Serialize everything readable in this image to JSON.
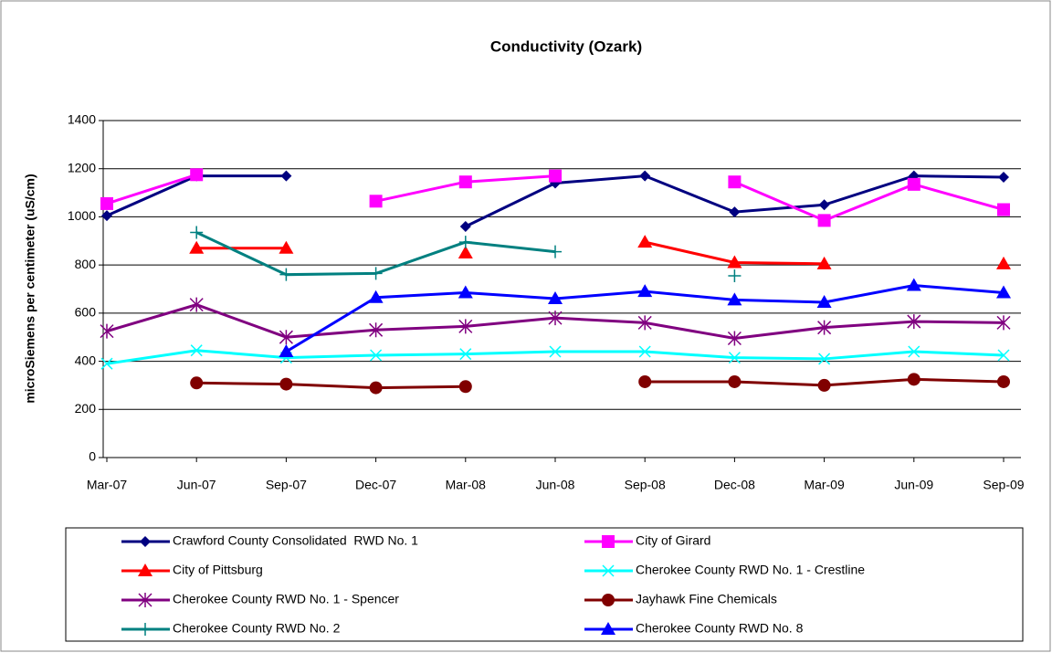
{
  "chart_data": {
    "type": "line",
    "title": "Conductivity (Ozark)",
    "y_label": "microSiemens per centimeter (uS/cm)",
    "categories": [
      "Mar-07",
      "Jun-07",
      "Sep-07",
      "Dec-07",
      "Mar-08",
      "Jun-08",
      "Sep-08",
      "Dec-08",
      "Mar-09",
      "Jun-09",
      "Sep-09"
    ],
    "ylim": [
      0,
      1400
    ],
    "yticks": [
      0,
      200,
      400,
      600,
      800,
      1000,
      1200,
      1400
    ],
    "grid": true,
    "legend": "bottom",
    "series": [
      {
        "name": "Crawford County Consolidated  RWD No. 1",
        "color": "#000080",
        "marker": "diamond",
        "values": [
          1005,
          1170,
          1170,
          null,
          960,
          1140,
          1170,
          1020,
          1050,
          1170,
          1165
        ]
      },
      {
        "name": "City of Girard",
        "color": "#ff00ff",
        "marker": "square",
        "values": [
          1055,
          1175,
          null,
          1065,
          1145,
          1170,
          null,
          1145,
          985,
          1135,
          1030
        ]
      },
      {
        "name": "City of Pittsburg",
        "color": "#ff0000",
        "marker": "triangle",
        "values": [
          null,
          870,
          870,
          null,
          850,
          null,
          895,
          810,
          805,
          null,
          805
        ]
      },
      {
        "name": "Cherokee County RWD No. 1 - Crestline",
        "color": "#00ffff",
        "marker": "x",
        "values": [
          390,
          445,
          415,
          425,
          430,
          440,
          440,
          415,
          410,
          440,
          425
        ]
      },
      {
        "name": "Cherokee County RWD No. 1 - Spencer",
        "color": "#800080",
        "marker": "asterisk",
        "values": [
          525,
          635,
          500,
          530,
          545,
          580,
          560,
          495,
          540,
          565,
          560
        ]
      },
      {
        "name": "Jayhawk Fine Chemicals",
        "color": "#800000",
        "marker": "circle",
        "values": [
          null,
          310,
          305,
          290,
          295,
          null,
          315,
          315,
          300,
          325,
          315
        ]
      },
      {
        "name": "Cherokee County RWD No. 2",
        "color": "#008080",
        "marker": "plus",
        "values": [
          null,
          935,
          760,
          765,
          895,
          855,
          null,
          755,
          null,
          null,
          null
        ]
      },
      {
        "name": "Cherokee County RWD No. 8",
        "color": "#0000ff",
        "marker": "triangle",
        "values": [
          null,
          null,
          440,
          665,
          685,
          660,
          690,
          655,
          645,
          715,
          685
        ]
      }
    ]
  }
}
